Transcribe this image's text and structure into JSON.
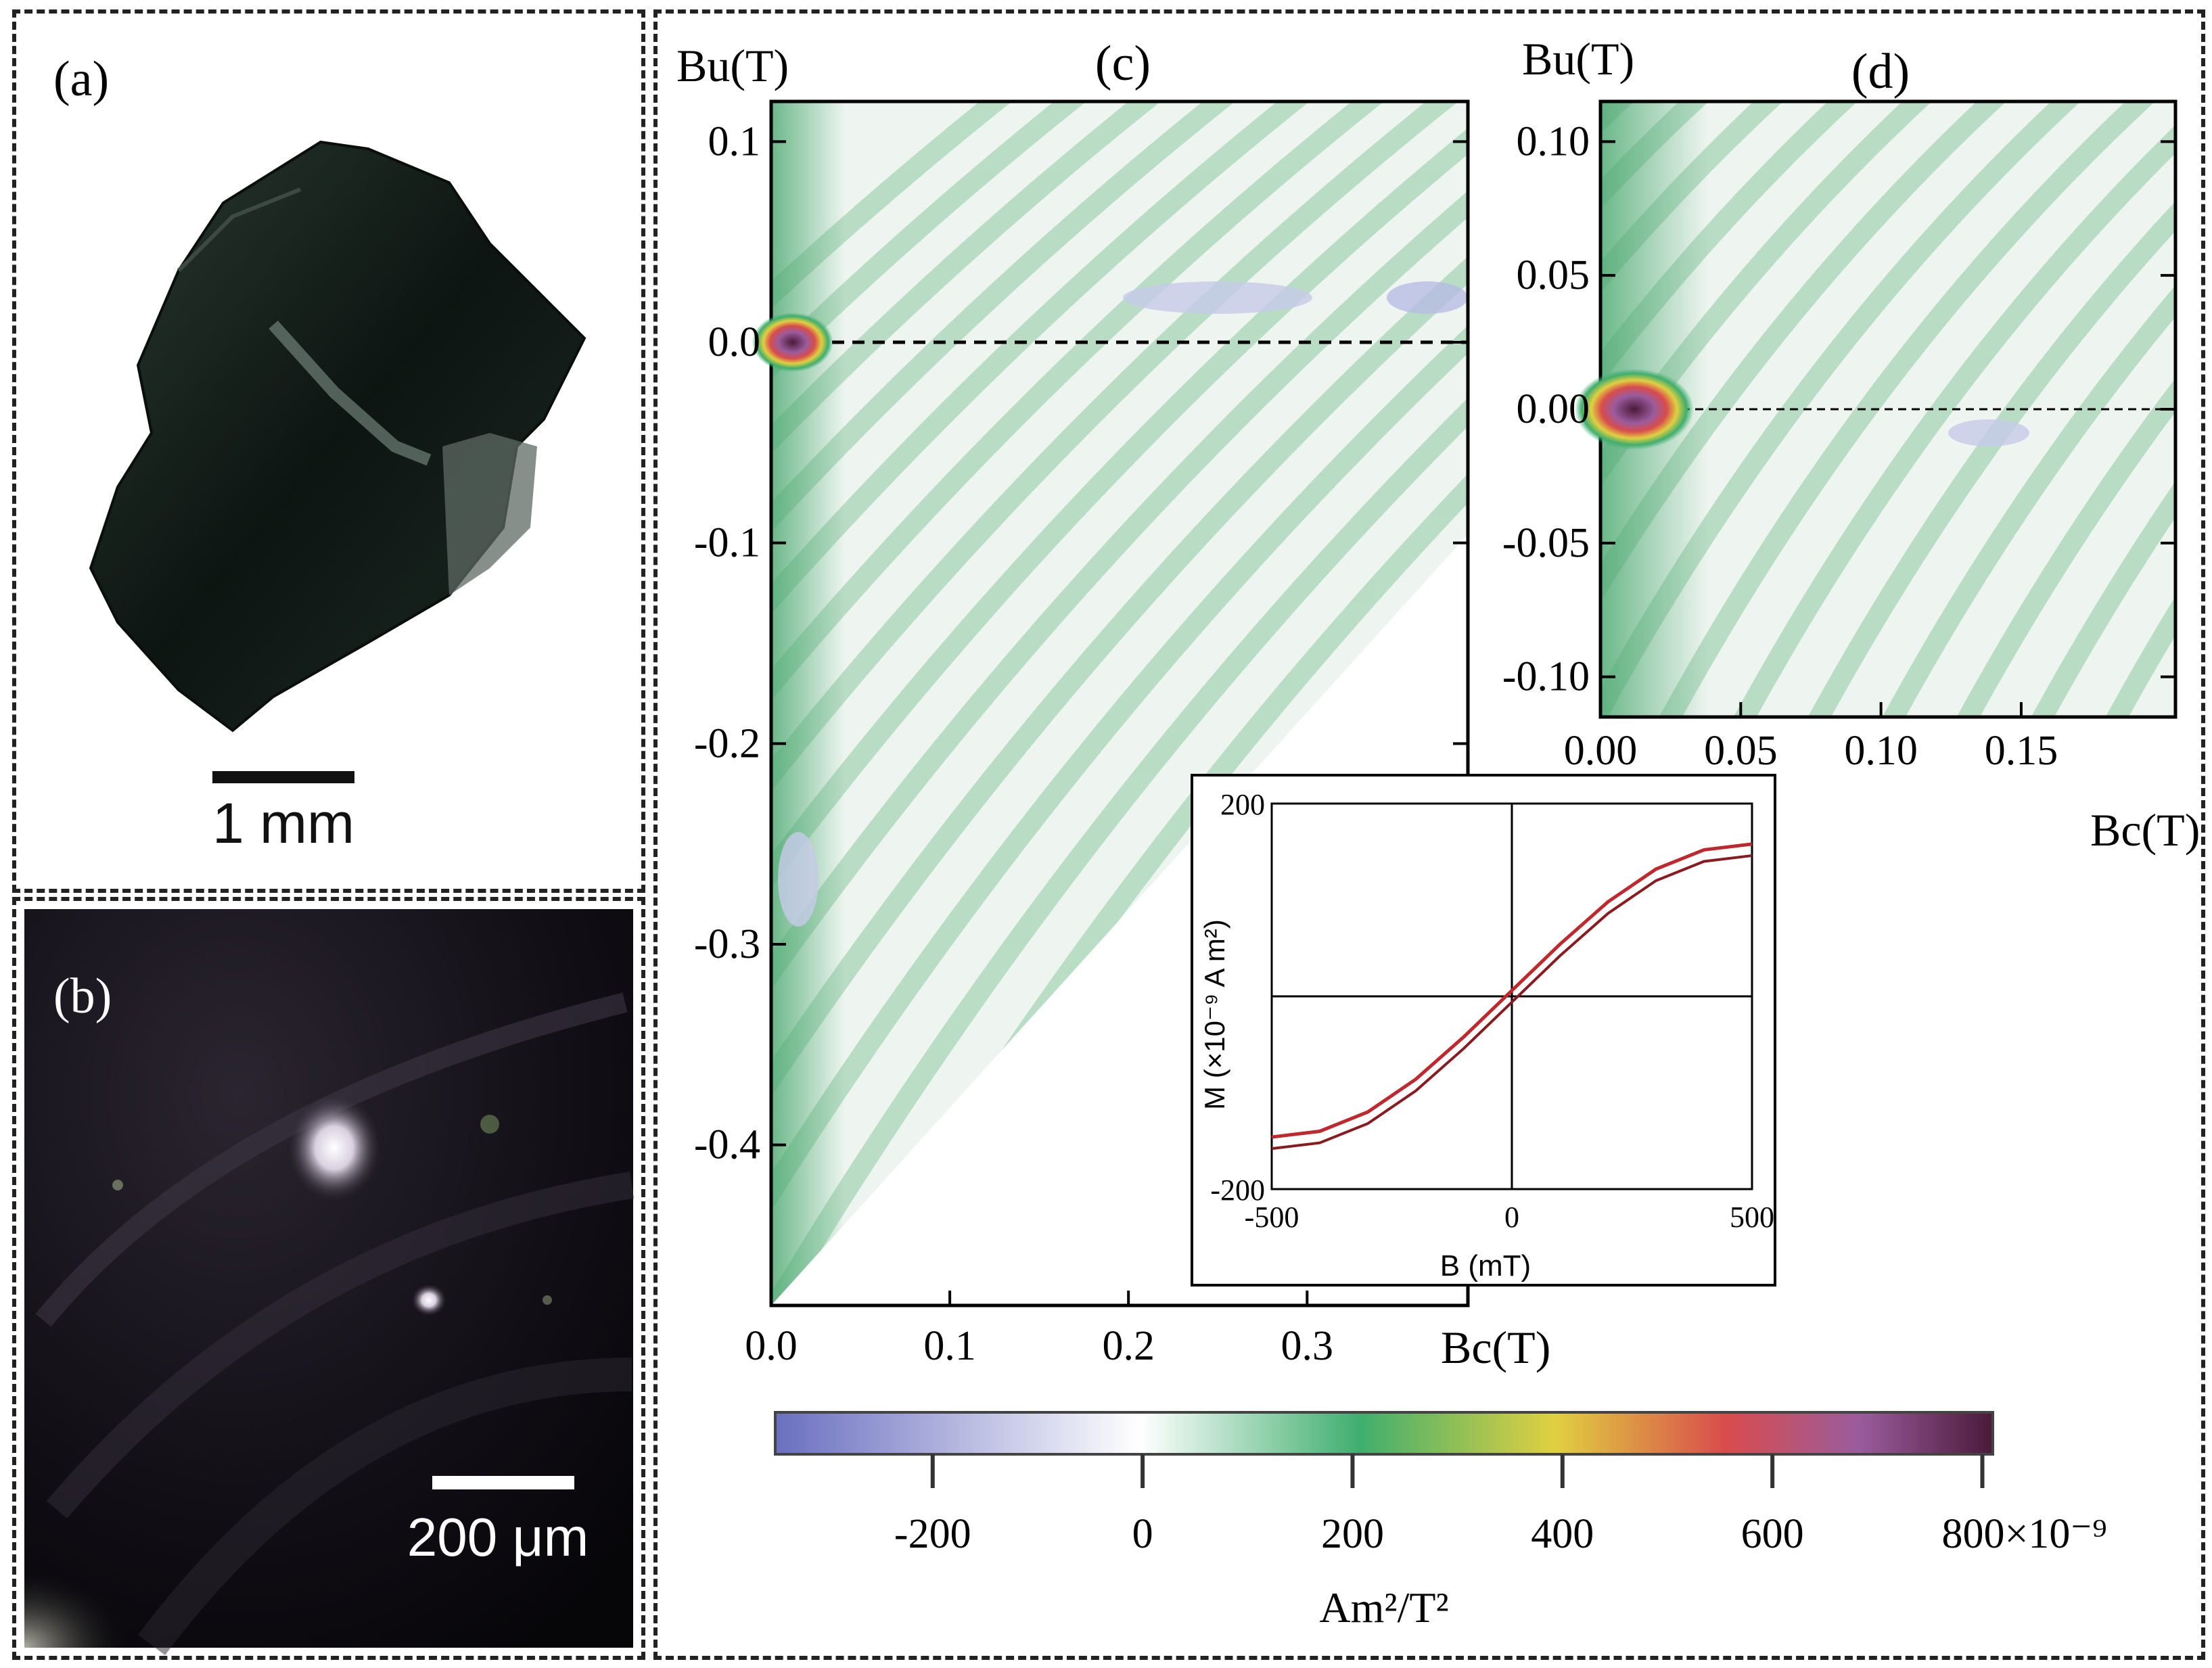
{
  "panel_a": {
    "label": "(a)",
    "scale_bar": "1 mm"
  },
  "panel_b": {
    "label": "(b)",
    "scale_bar": "200 μm"
  },
  "chart_data": [
    {
      "id": "c",
      "type": "heatmap",
      "label": "(c)",
      "ylabel": "Bu(T)",
      "xlabel": "Bc(T)",
      "xlim": [
        0.0,
        0.39
      ],
      "ylim": [
        -0.48,
        0.12
      ],
      "x_ticks": [
        "0.0",
        "0.1",
        "0.2",
        "0.3"
      ],
      "y_ticks": [
        "0.1",
        "0.0",
        "-0.1",
        "-0.2",
        "-0.3",
        "-0.4"
      ],
      "reference_line": {
        "y": 0.0,
        "style": "dashed"
      },
      "peak": {
        "x": 0.012,
        "y": 0.0
      }
    },
    {
      "id": "d",
      "type": "heatmap",
      "label": "(d)",
      "ylabel": "Bu(T)",
      "xlabel": "Bc(T)",
      "xlim": [
        0.0,
        0.205
      ],
      "ylim": [
        -0.115,
        0.115
      ],
      "x_ticks": [
        "0.00",
        "0.05",
        "0.10",
        "0.15"
      ],
      "y_ticks": [
        "0.10",
        "0.05",
        "0.00",
        "-0.05",
        "-0.10"
      ],
      "reference_line": {
        "y": 0.0,
        "style": "dashed"
      },
      "peak": {
        "x": 0.012,
        "y": 0.0
      }
    },
    {
      "id": "inset",
      "type": "line",
      "ylabel": "M (×10⁻⁹ A m²)",
      "xlabel": "B (mT)",
      "xlim": [
        -500,
        500
      ],
      "ylim": [
        -200,
        200
      ],
      "x_ticks": [
        "-500",
        "0",
        "500"
      ],
      "y_ticks": [
        "200",
        "-200"
      ],
      "series": [
        {
          "points": [
            [
              -500,
              -152
            ],
            [
              -400,
              -146
            ],
            [
              -300,
              -126
            ],
            [
              -200,
              -92
            ],
            [
              -100,
              -48
            ],
            [
              0,
              0
            ],
            [
              100,
              48
            ],
            [
              200,
              92
            ],
            [
              300,
              126
            ],
            [
              400,
              146
            ],
            [
              500,
              152
            ]
          ]
        }
      ]
    },
    {
      "id": "colorbar",
      "type": "heatmap",
      "range": [
        -350,
        810
      ],
      "ticks": [
        -200,
        0,
        200,
        400,
        600,
        800
      ],
      "tick_labels": [
        "-200",
        "0",
        "200",
        "400",
        "600",
        "800×10⁻⁹"
      ],
      "unit": "Am²/T²",
      "colors": [
        "#6a6fc0",
        "#ffffff",
        "#3fae6e",
        "#e0d040",
        "#d94c4c",
        "#9b5c9d",
        "#4a1a3a"
      ]
    }
  ]
}
